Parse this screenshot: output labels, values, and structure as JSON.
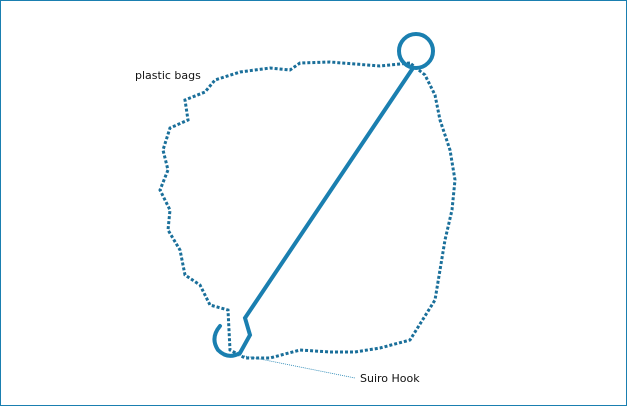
{
  "labels": {
    "bags": "plastic bags",
    "hook": "Suiro Hook"
  }
}
